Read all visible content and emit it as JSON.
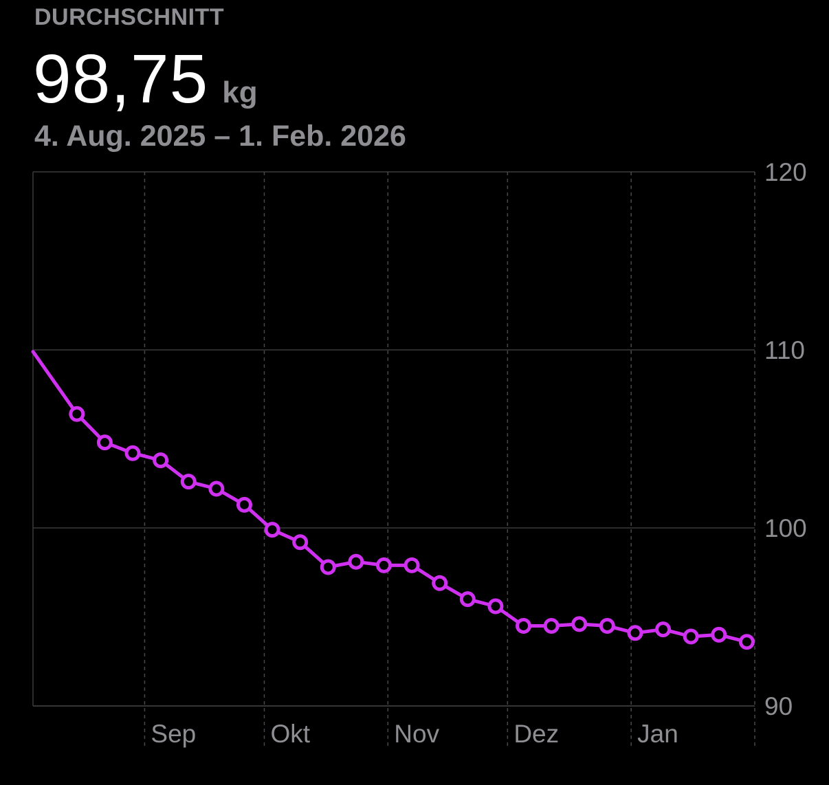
{
  "summary": {
    "label": "DURCHSCHNITT",
    "value": "98,75",
    "unit": "kg",
    "date_range": "4. Aug. 2025 – 1. Feb. 2026"
  },
  "colors": {
    "background": "#000000",
    "line": "#d030f0",
    "point_fill": "#000000",
    "gridline": "#3a3a3c",
    "label": "#8e8e93"
  },
  "chart_data": {
    "type": "line",
    "title": "",
    "xlabel": "",
    "ylabel": "",
    "ylim": [
      90,
      120
    ],
    "yticks": [
      "120",
      "110",
      "100",
      "90"
    ],
    "month_labels": [
      "Sep",
      "Okt",
      "Nov",
      "Dez",
      "Jan"
    ],
    "grid": true,
    "y_axis_side": "right",
    "series": [
      {
        "points": [
          {
            "x": "2025-08-04",
            "y": 109.9,
            "marker": false
          },
          {
            "x": "2025-08-15",
            "y": 106.4
          },
          {
            "x": "2025-08-22",
            "y": 104.8
          },
          {
            "x": "2025-08-29",
            "y": 104.2
          },
          {
            "x": "2025-09-05",
            "y": 103.8
          },
          {
            "x": "2025-09-12",
            "y": 102.6
          },
          {
            "x": "2025-09-19",
            "y": 102.2
          },
          {
            "x": "2025-09-26",
            "y": 101.3
          },
          {
            "x": "2025-10-03",
            "y": 99.9
          },
          {
            "x": "2025-10-10",
            "y": 99.2
          },
          {
            "x": "2025-10-17",
            "y": 97.8
          },
          {
            "x": "2025-10-24",
            "y": 98.1
          },
          {
            "x": "2025-10-31",
            "y": 97.9
          },
          {
            "x": "2025-11-07",
            "y": 97.9
          },
          {
            "x": "2025-11-14",
            "y": 96.9
          },
          {
            "x": "2025-11-21",
            "y": 96.0
          },
          {
            "x": "2025-11-28",
            "y": 95.6
          },
          {
            "x": "2025-12-05",
            "y": 94.5
          },
          {
            "x": "2025-12-12",
            "y": 94.5
          },
          {
            "x": "2025-12-19",
            "y": 94.6
          },
          {
            "x": "2025-12-26",
            "y": 94.5
          },
          {
            "x": "2026-01-02",
            "y": 94.1
          },
          {
            "x": "2026-01-09",
            "y": 94.3
          },
          {
            "x": "2026-01-16",
            "y": 93.9
          },
          {
            "x": "2026-01-23",
            "y": 94.0
          },
          {
            "x": "2026-01-30",
            "y": 93.6
          }
        ]
      }
    ]
  }
}
